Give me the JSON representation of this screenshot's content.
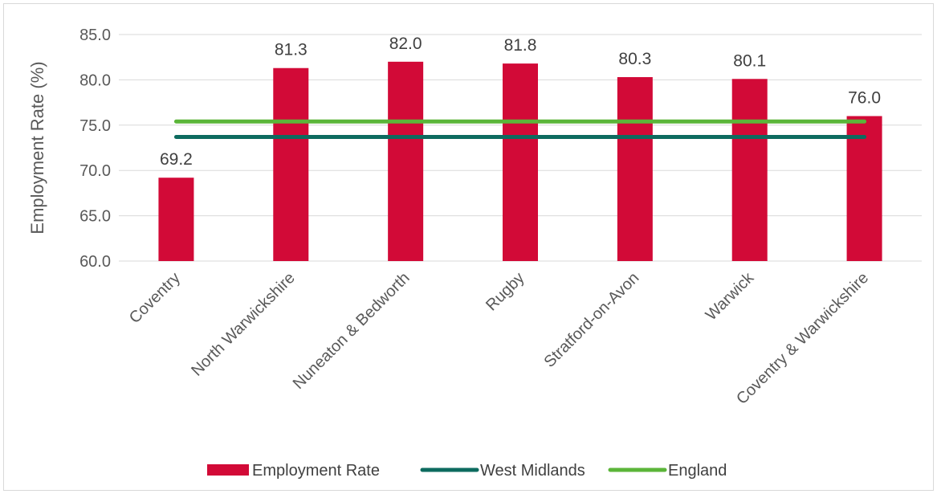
{
  "chart_data": {
    "type": "bar",
    "categories": [
      "Coventry",
      "North Warwickshire",
      "Nuneaton & Bedworth",
      "Rugby",
      "Stratford-on-Avon",
      "Warwick",
      "Coventry & Warwickshire"
    ],
    "series": [
      {
        "name": "Employment Rate",
        "type": "bar",
        "values": [
          69.2,
          81.3,
          82.0,
          81.8,
          80.3,
          80.1,
          76.0
        ],
        "color": "#d20a37"
      },
      {
        "name": "West Midlands",
        "type": "line",
        "values": [
          73.7,
          73.7,
          73.7,
          73.7,
          73.7,
          73.7,
          73.7
        ],
        "color": "#0d6b5f"
      },
      {
        "name": "England",
        "type": "line",
        "values": [
          75.4,
          75.4,
          75.4,
          75.4,
          75.4,
          75.4,
          75.4
        ],
        "color": "#5bb539"
      }
    ],
    "data_labels": [
      "69.2",
      "81.3",
      "82.0",
      "81.8",
      "80.3",
      "80.1",
      "76.0"
    ],
    "yticks": [
      "60.0",
      "65.0",
      "70.0",
      "75.0",
      "80.0",
      "85.0"
    ],
    "ylabel": "Employment Rate (%)",
    "xlabel": "",
    "ylim": [
      60,
      85
    ],
    "grid": true,
    "legend": "bottom"
  }
}
